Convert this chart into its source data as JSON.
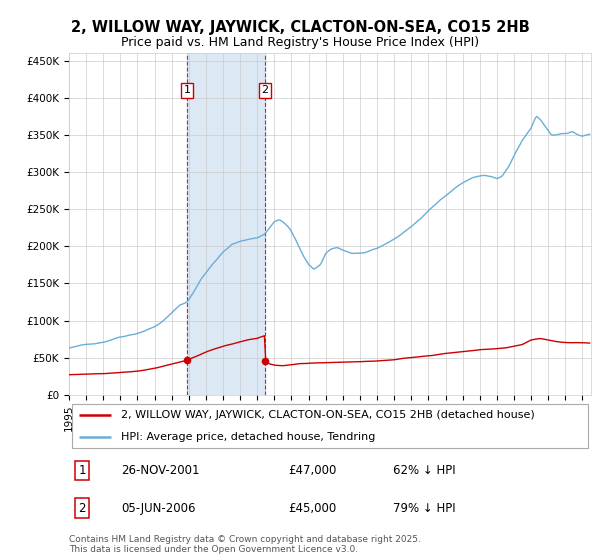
{
  "title": "2, WILLOW WAY, JAYWICK, CLACTON-ON-SEA, CO15 2HB",
  "subtitle": "Price paid vs. HM Land Registry's House Price Index (HPI)",
  "copyright": "Contains HM Land Registry data © Crown copyright and database right 2025.\nThis data is licensed under the Open Government Licence v3.0.",
  "legend1": "2, WILLOW WAY, JAYWICK, CLACTON-ON-SEA, CO15 2HB (detached house)",
  "legend2": "HPI: Average price, detached house, Tendring",
  "sale1_date": "26-NOV-2001",
  "sale1_price": "£47,000",
  "sale1_hpi": "62% ↓ HPI",
  "sale2_date": "05-JUN-2006",
  "sale2_price": "£45,000",
  "sale2_hpi": "79% ↓ HPI",
  "red_color": "#cc0000",
  "blue_color": "#6baed6",
  "shade_color": "#dce9f5",
  "grid_color": "#cccccc",
  "sale1_x": 2001.9,
  "sale2_x": 2006.45,
  "ylim_max": 460000,
  "xlim_min": 1995.0,
  "xlim_max": 2025.5,
  "yticks": [
    0,
    50000,
    100000,
    150000,
    200000,
    250000,
    300000,
    350000,
    400000,
    450000
  ],
  "ylabels": [
    "£0",
    "£50K",
    "£100K",
    "£150K",
    "£200K",
    "£250K",
    "£300K",
    "£350K",
    "£400K",
    "£450K"
  ],
  "title_fontsize": 10.5,
  "subtitle_fontsize": 9,
  "tick_fontsize": 7.5,
  "legend_fontsize": 8,
  "table_fontsize": 8.5,
  "copyright_fontsize": 6.5
}
